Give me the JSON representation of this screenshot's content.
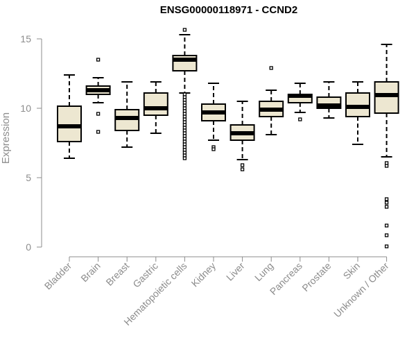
{
  "chart_data": {
    "type": "box",
    "title": "ENSG00000118971 - CCND2",
    "xlabel": "",
    "ylabel": "Expression",
    "ylim": [
      0,
      15
    ],
    "yticks": [
      0,
      5,
      10,
      15
    ],
    "grid": false,
    "legend": "none",
    "colors": {
      "box_fill": "#ede7d1",
      "box_stroke": "#000000",
      "axis": "#8c8c8c"
    },
    "categories": [
      "Bladder",
      "Brain",
      "Breast",
      "Gastric",
      "Hematopoietic cells",
      "Kidney",
      "Liver",
      "Lung",
      "Pancreas",
      "Prostate",
      "Skin",
      "Unknown / Other"
    ],
    "boxes": [
      {
        "q1": 7.6,
        "median": 8.7,
        "q3": 10.15,
        "whisker_low": 6.4,
        "whisker_high": 12.4,
        "outliers": []
      },
      {
        "q1": 11.0,
        "median": 11.3,
        "q3": 11.6,
        "whisker_low": 10.4,
        "whisker_high": 12.2,
        "outliers": [
          13.5,
          9.6,
          8.3
        ]
      },
      {
        "q1": 8.4,
        "median": 9.3,
        "q3": 9.9,
        "whisker_low": 7.2,
        "whisker_high": 11.9,
        "outliers": []
      },
      {
        "q1": 9.5,
        "median": 10.0,
        "q3": 11.1,
        "whisker_low": 8.2,
        "whisker_high": 11.9,
        "outliers": []
      },
      {
        "q1": 12.7,
        "median": 13.5,
        "q3": 13.8,
        "whisker_low": 11.1,
        "whisker_high": 15.3,
        "outliers": [
          15.65,
          11.0,
          10.8,
          10.6,
          10.4,
          10.2,
          10.0,
          9.8,
          9.6,
          9.4,
          9.2,
          9.0,
          8.8,
          8.6,
          8.4,
          8.2,
          8.0,
          7.8,
          7.6,
          7.4,
          7.2,
          7.0,
          6.8,
          6.6,
          6.4
        ]
      },
      {
        "q1": 9.1,
        "median": 9.7,
        "q3": 10.3,
        "whisker_low": 7.7,
        "whisker_high": 11.8,
        "outliers": [
          7.2,
          7.05
        ]
      },
      {
        "q1": 7.7,
        "median": 8.2,
        "q3": 8.8,
        "whisker_low": 6.3,
        "whisker_high": 10.5,
        "outliers": [
          5.9,
          5.6
        ]
      },
      {
        "q1": 9.4,
        "median": 9.9,
        "q3": 10.5,
        "whisker_low": 8.1,
        "whisker_high": 11.3,
        "outliers": [
          12.9
        ]
      },
      {
        "q1": 10.4,
        "median": 10.9,
        "q3": 11.0,
        "whisker_low": 9.7,
        "whisker_high": 11.8,
        "outliers": [
          9.2
        ]
      },
      {
        "q1": 10.0,
        "median": 10.2,
        "q3": 10.8,
        "whisker_low": 9.3,
        "whisker_high": 11.9,
        "outliers": []
      },
      {
        "q1": 9.4,
        "median": 10.1,
        "q3": 11.1,
        "whisker_low": 7.4,
        "whisker_high": 11.9,
        "outliers": []
      },
      {
        "q1": 9.65,
        "median": 10.95,
        "q3": 11.9,
        "whisker_low": 6.5,
        "whisker_high": 14.6,
        "outliers": [
          6.05,
          5.85,
          3.45,
          3.2,
          2.9,
          1.55,
          0.85,
          0.05
        ]
      }
    ]
  }
}
